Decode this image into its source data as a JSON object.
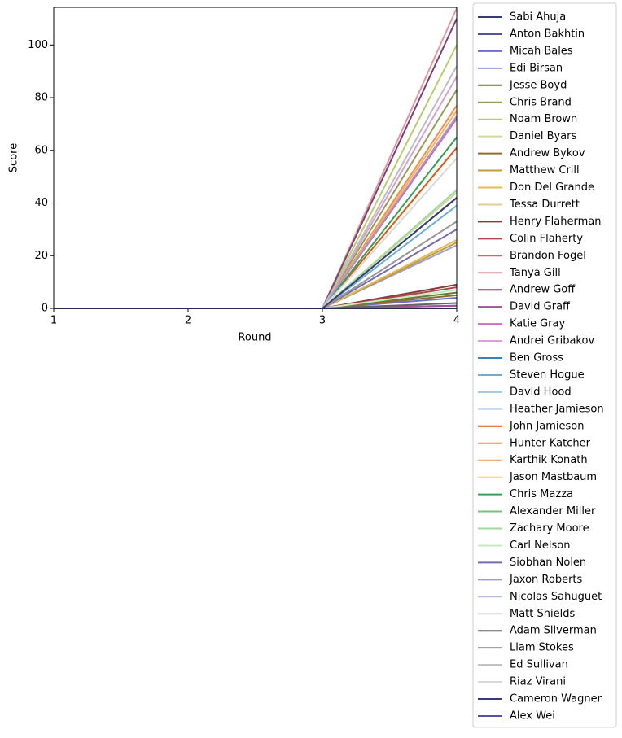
{
  "chart_data": {
    "type": "line",
    "x_label": "Round",
    "y_label": "Score",
    "x": [
      1,
      2,
      3,
      4
    ],
    "xlim": [
      1,
      4
    ],
    "xticks": [
      1,
      2,
      3,
      4
    ],
    "ylim": [
      0,
      114.3
    ],
    "yticks": [
      0,
      20,
      40,
      60,
      80,
      100
    ],
    "legend": "outside right",
    "series": [
      {
        "name": "Sabi Ahuja",
        "color": "#393b79",
        "values": [
          0,
          0,
          0,
          42
        ]
      },
      {
        "name": "Anton Bakhtin",
        "color": "#5254a3",
        "values": [
          0,
          0,
          0,
          1
        ]
      },
      {
        "name": "Micah Bales",
        "color": "#6b6ecf",
        "values": [
          0,
          0,
          0,
          4
        ]
      },
      {
        "name": "Edi Birsan",
        "color": "#9c9ede",
        "values": [
          0,
          0,
          0,
          24
        ]
      },
      {
        "name": "Jesse Boyd",
        "color": "#637939",
        "values": [
          0,
          0,
          0,
          6
        ]
      },
      {
        "name": "Chris Brand",
        "color": "#8ca252",
        "values": [
          0,
          0,
          0,
          83
        ]
      },
      {
        "name": "Noam Brown",
        "color": "#b5cf6b",
        "values": [
          0,
          0,
          0,
          100
        ]
      },
      {
        "name": "Daniel Byars",
        "color": "#cedb9c",
        "values": [
          0,
          0,
          0,
          44
        ]
      },
      {
        "name": "Andrew Bykov",
        "color": "#8c6d31",
        "values": [
          0,
          0,
          0,
          5
        ]
      },
      {
        "name": "Matthew Crill",
        "color": "#bd9e39",
        "values": [
          0,
          0,
          0,
          25
        ]
      },
      {
        "name": "Don Del Grande",
        "color": "#e7ba52",
        "values": [
          0,
          0,
          0,
          26
        ]
      },
      {
        "name": "Tessa Durrett",
        "color": "#e7cb94",
        "values": [
          0,
          0,
          0,
          0
        ]
      },
      {
        "name": "Henry Flaherman",
        "color": "#843c39",
        "values": [
          0,
          0,
          0,
          9
        ]
      },
      {
        "name": "Colin Flaherty",
        "color": "#ad494a",
        "values": [
          0,
          0,
          0,
          8
        ]
      },
      {
        "name": "Brandon Fogel",
        "color": "#d6616b",
        "values": [
          0,
          0,
          0,
          0
        ]
      },
      {
        "name": "Tanya Gill",
        "color": "#e7969c",
        "values": [
          0,
          0,
          0,
          114
        ]
      },
      {
        "name": "Andrew Goff",
        "color": "#7b4173",
        "values": [
          0,
          0,
          0,
          110
        ]
      },
      {
        "name": "David Graff",
        "color": "#a55194",
        "values": [
          0,
          0,
          0,
          1
        ]
      },
      {
        "name": "Katie Gray",
        "color": "#ce6dbd",
        "values": [
          0,
          0,
          0,
          72
        ]
      },
      {
        "name": "Andrei Gribakov",
        "color": "#de9ed6",
        "values": [
          0,
          0,
          0,
          88
        ]
      },
      {
        "name": "Ben Gross",
        "color": "#3182bd",
        "values": [
          0,
          0,
          0,
          0
        ]
      },
      {
        "name": "Steven Hogue",
        "color": "#6baed6",
        "values": [
          0,
          0,
          0,
          39
        ]
      },
      {
        "name": "David Hood",
        "color": "#9ecae1",
        "values": [
          0,
          0,
          0,
          0
        ]
      },
      {
        "name": "Heather Jamieson",
        "color": "#c6dbef",
        "values": [
          0,
          0,
          0,
          0
        ]
      },
      {
        "name": "John Jamieson",
        "color": "#e6550d",
        "values": [
          0,
          0,
          0,
          61
        ]
      },
      {
        "name": "Hunter Katcher",
        "color": "#fd8d3c",
        "values": [
          0,
          0,
          0,
          77
        ]
      },
      {
        "name": "Karthik Konath",
        "color": "#fdae6b",
        "values": [
          0,
          0,
          0,
          75
        ]
      },
      {
        "name": "Jason Mastbaum",
        "color": "#fdd0a2",
        "values": [
          0,
          0,
          0,
          0
        ]
      },
      {
        "name": "Chris Mazza",
        "color": "#31a354",
        "values": [
          0,
          0,
          0,
          65
        ]
      },
      {
        "name": "Alexander Miller",
        "color": "#74c476",
        "values": [
          0,
          0,
          0,
          0
        ]
      },
      {
        "name": "Zachary Moore",
        "color": "#a1d99b",
        "values": [
          0,
          0,
          0,
          45
        ]
      },
      {
        "name": "Carl Nelson",
        "color": "#c7e9c0",
        "values": [
          0,
          0,
          0,
          7
        ]
      },
      {
        "name": "Siobhan Nolen",
        "color": "#756bb1",
        "values": [
          0,
          0,
          0,
          30
        ]
      },
      {
        "name": "Jaxon Roberts",
        "color": "#9e9ac8",
        "values": [
          0,
          0,
          0,
          73
        ]
      },
      {
        "name": "Nicolas Sahuguet",
        "color": "#bcbddc",
        "values": [
          0,
          0,
          0,
          0
        ]
      },
      {
        "name": "Matt Shields",
        "color": "#dadaeb",
        "values": [
          0,
          0,
          0,
          0
        ]
      },
      {
        "name": "Adam Silverman",
        "color": "#636363",
        "values": [
          0,
          0,
          0,
          2
        ]
      },
      {
        "name": "Liam Stokes",
        "color": "#969696",
        "values": [
          0,
          0,
          0,
          33
        ]
      },
      {
        "name": "Ed Sullivan",
        "color": "#bdbdbd",
        "values": [
          0,
          0,
          0,
          92
        ]
      },
      {
        "name": "Riaz Virani",
        "color": "#d9d9d9",
        "values": [
          0,
          0,
          0,
          57
        ]
      },
      {
        "name": "Cameron Wagner",
        "color": "#393b79",
        "values": [
          0,
          0,
          0,
          42
        ]
      },
      {
        "name": "Alex Wei",
        "color": "#5254a3",
        "values": [
          0,
          0,
          0,
          0
        ]
      }
    ]
  }
}
